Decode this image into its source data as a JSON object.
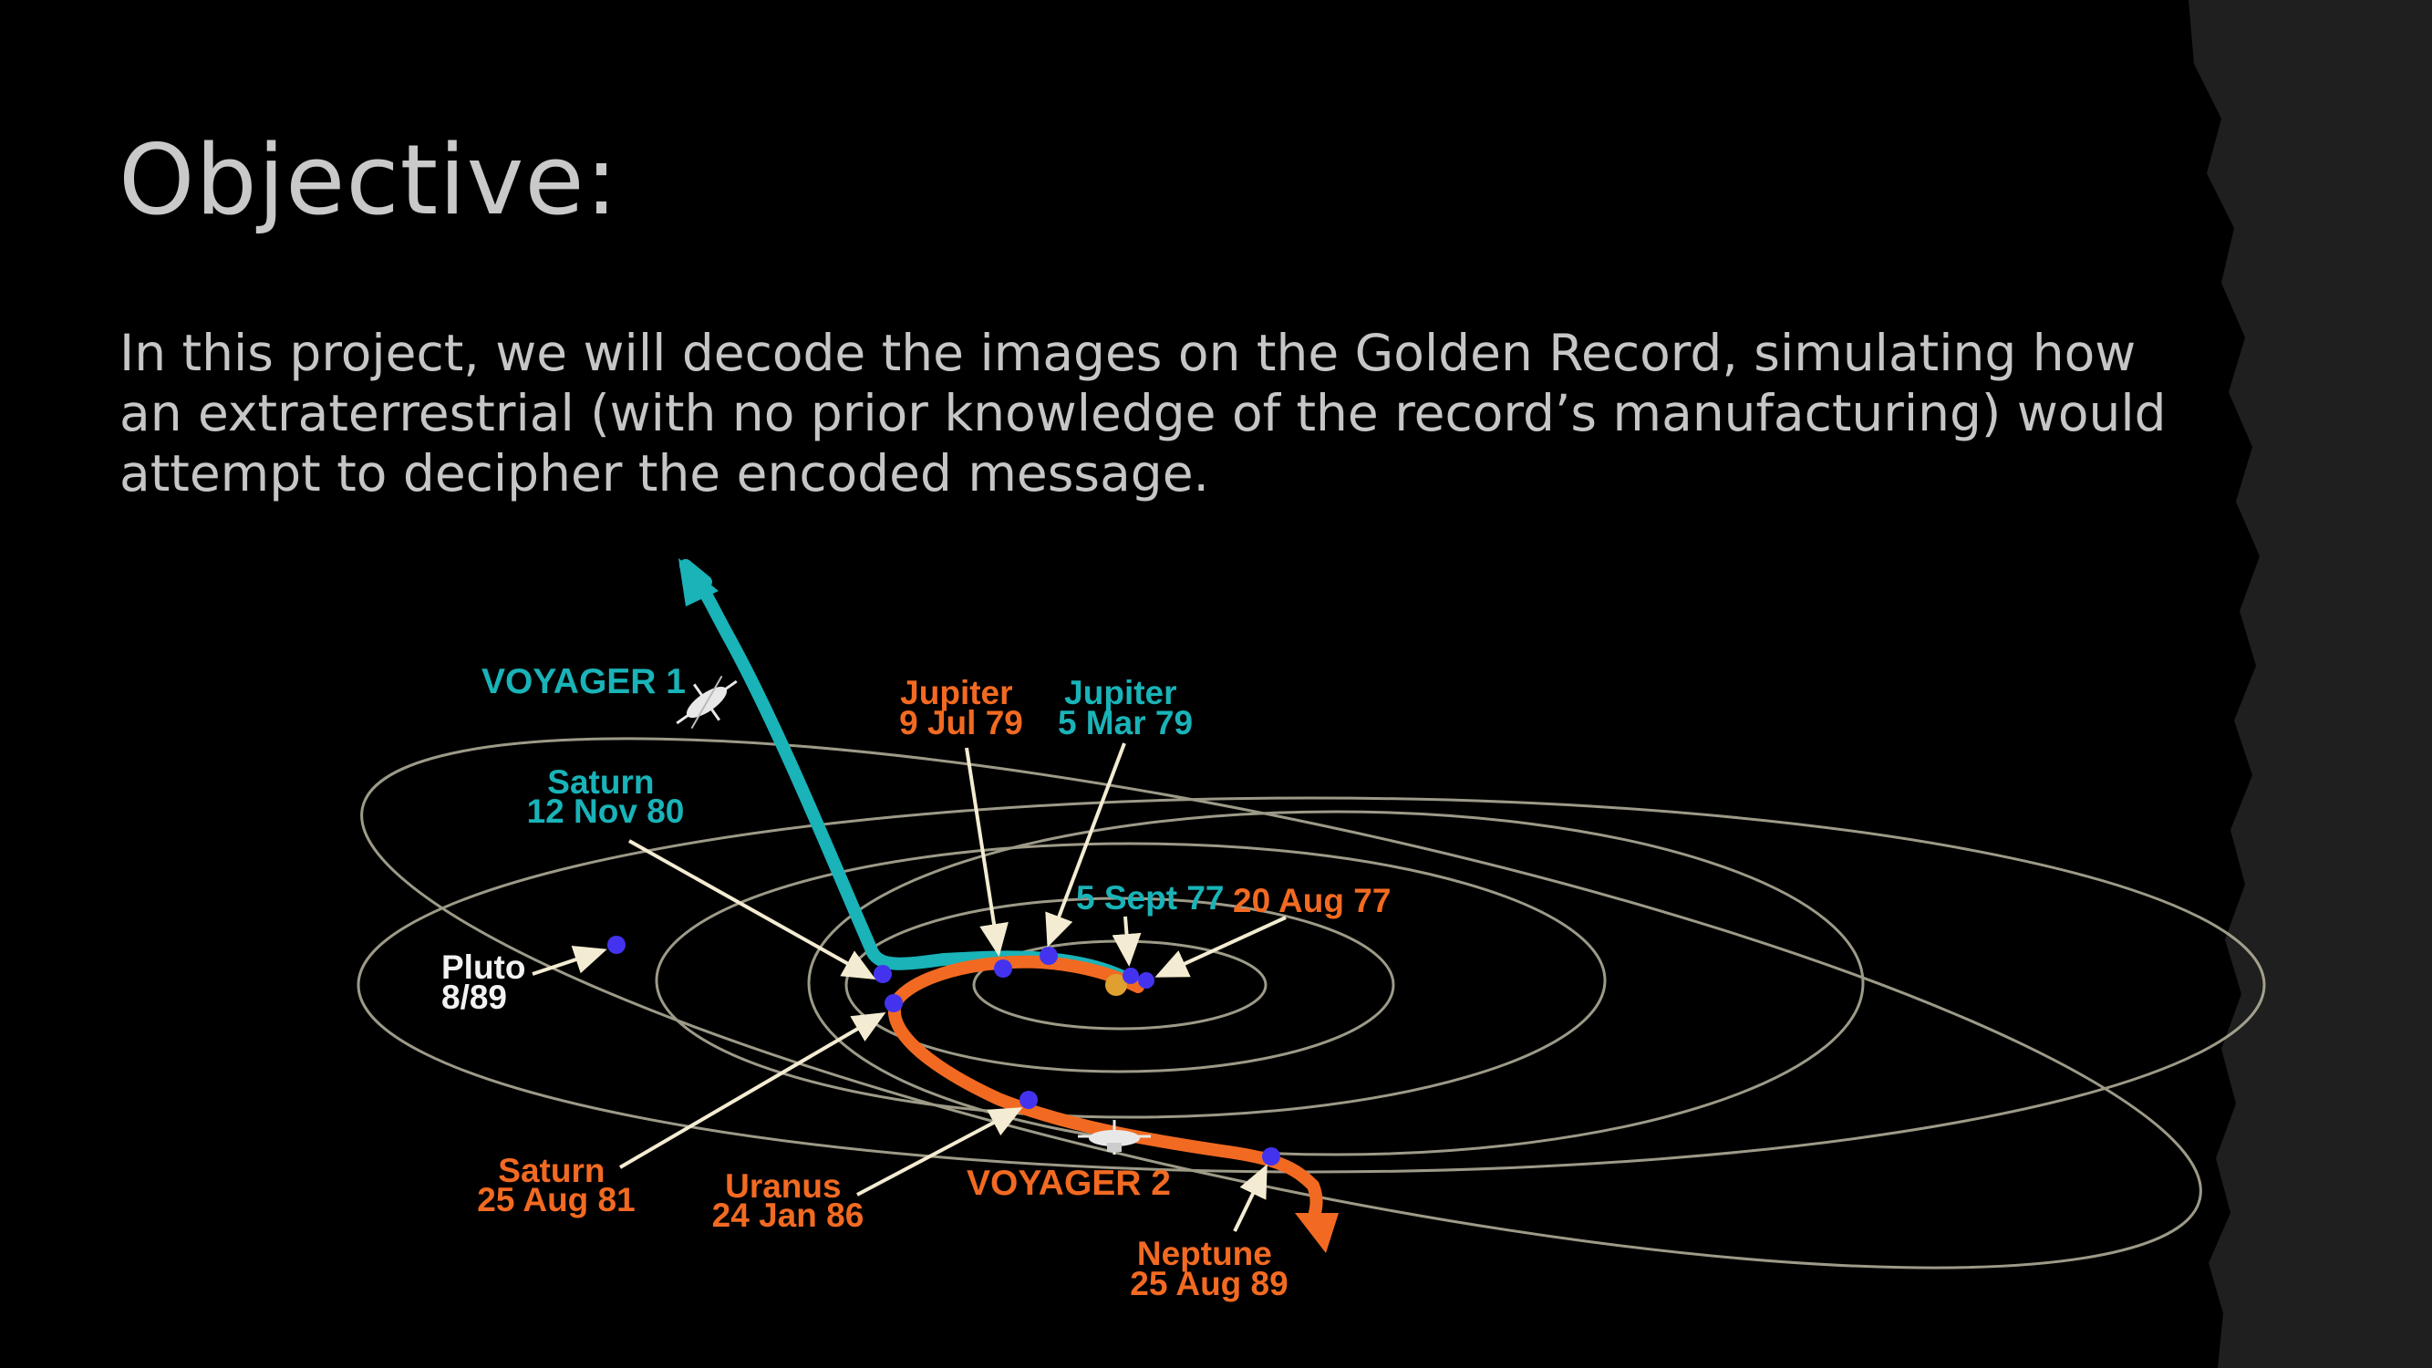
{
  "slide": {
    "title": "Objective:",
    "body": "In this project, we will decode the images on the Golden Record, simulating how an extraterrestrial (with no prior knowledge of the record’s manufacturing) would attempt to decipher the encoded message."
  },
  "colors": {
    "background": "#000000",
    "side_strip": "#1f1f1f",
    "voyager1": "#19b3b8",
    "voyager2": "#f26a22",
    "planet_dot": "#4433ee",
    "sun": "#e0a030",
    "orbit": "#b9b6a0",
    "pointer": "#f3ecd2",
    "pluto_label": "#f2f2f2"
  },
  "diagram": {
    "voyager1_label": "VOYAGER 1",
    "voyager2_label": "VOYAGER 2",
    "labels": {
      "jupiter_v2": [
        "Jupiter",
        "9 Jul 79"
      ],
      "jupiter_v1": [
        "Jupiter",
        "5 Mar 79"
      ],
      "saturn_v1": [
        "Saturn",
        "12 Nov 80"
      ],
      "launch_v1": "5 Sept 77",
      "launch_v2": "20 Aug 77",
      "pluto": [
        "Pluto",
        "8/89"
      ],
      "saturn_v2": [
        "Saturn",
        "25 Aug 81"
      ],
      "uranus": [
        "Uranus",
        "24 Jan 86"
      ],
      "neptune": [
        "Neptune",
        "25 Aug 89"
      ]
    },
    "icons": [
      "voyager1-spacecraft-icon",
      "voyager2-spacecraft-icon",
      "sun-icon"
    ]
  }
}
